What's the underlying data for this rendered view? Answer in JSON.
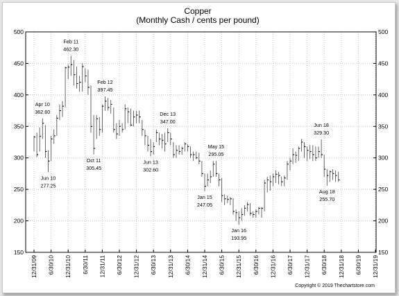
{
  "chart_data": {
    "type": "ohlc",
    "title": "Copper",
    "subtitle": "(Monthly Cash / cents per pound)",
    "xlabel": "",
    "ylabel": "",
    "ylim": [
      150,
      500
    ],
    "yticks": [
      150,
      200,
      250,
      300,
      350,
      400,
      450,
      500
    ],
    "grid": true,
    "x_tick_labels": [
      "12/31/09",
      "6/30/10",
      "12/31/10",
      "6/30/11",
      "12/31/11",
      "6/30/12",
      "12/31/12",
      "6/30/13",
      "12/31/13",
      "6/30/14",
      "12/31/14",
      "6/30/15",
      "12/31/15",
      "6/30/16",
      "12/31/16",
      "6/30/17",
      "12/31/17",
      "6/30/18",
      "12/31/18",
      "6/30/19",
      "12/31/19"
    ],
    "copyright": "Copyright © 2019 Thechartstore.com",
    "annotations": [
      {
        "date": "Apr 10",
        "value": "362.60",
        "month": 3,
        "y": 362.6,
        "pos": "above"
      },
      {
        "date": "Jun 10",
        "value": "277.25",
        "month": 5,
        "y": 277.25,
        "pos": "below"
      },
      {
        "date": "Feb 11",
        "value": "462.30",
        "month": 13,
        "y": 462.3,
        "pos": "above"
      },
      {
        "date": "Oct 11",
        "value": "305.45",
        "month": 21,
        "y": 305.45,
        "pos": "below"
      },
      {
        "date": "Feb 12",
        "value": "397.45",
        "month": 25,
        "y": 397.45,
        "pos": "above"
      },
      {
        "date": "Jun 13",
        "value": "302.60",
        "month": 41,
        "y": 302.6,
        "pos": "below"
      },
      {
        "date": "Dec 13",
        "value": "347.00",
        "month": 47,
        "y": 347.0,
        "pos": "above"
      },
      {
        "date": "Jan 15",
        "value": "247.05",
        "month": 60,
        "y": 247.05,
        "pos": "below"
      },
      {
        "date": "May 15",
        "value": "295.05",
        "month": 64,
        "y": 295.05,
        "pos": "above"
      },
      {
        "date": "Jan 16",
        "value": "193.95",
        "month": 72,
        "y": 193.95,
        "pos": "below"
      },
      {
        "date": "Jun 18",
        "value": "329.30",
        "month": 101,
        "y": 329.3,
        "pos": "above"
      },
      {
        "date": "Aug 18",
        "value": "255.70",
        "month": 103,
        "y": 255.7,
        "pos": "below"
      }
    ],
    "bars": [
      {
        "x": 0,
        "h": 335,
        "l": 310,
        "c": 333
      },
      {
        "x": 1,
        "h": 340,
        "l": 301,
        "c": 305
      },
      {
        "x": 2,
        "h": 348,
        "l": 310,
        "c": 334
      },
      {
        "x": 3,
        "h": 362.6,
        "l": 330,
        "c": 355
      },
      {
        "x": 4,
        "h": 352,
        "l": 300,
        "c": 310
      },
      {
        "x": 5,
        "h": 312,
        "l": 277.25,
        "c": 295
      },
      {
        "x": 6,
        "h": 335,
        "l": 295,
        "c": 330
      },
      {
        "x": 7,
        "h": 345,
        "l": 322,
        "c": 335
      },
      {
        "x": 8,
        "h": 368,
        "l": 335,
        "c": 363
      },
      {
        "x": 9,
        "h": 385,
        "l": 360,
        "c": 375
      },
      {
        "x": 10,
        "h": 390,
        "l": 365,
        "c": 382
      },
      {
        "x": 11,
        "h": 445,
        "l": 380,
        "c": 443
      },
      {
        "x": 12,
        "h": 448,
        "l": 425,
        "c": 444
      },
      {
        "x": 13,
        "h": 462.3,
        "l": 430,
        "c": 448
      },
      {
        "x": 14,
        "h": 455,
        "l": 415,
        "c": 432
      },
      {
        "x": 15,
        "h": 445,
        "l": 410,
        "c": 418
      },
      {
        "x": 16,
        "h": 430,
        "l": 405,
        "c": 420
      },
      {
        "x": 17,
        "h": 450,
        "l": 405,
        "c": 445
      },
      {
        "x": 18,
        "h": 442,
        "l": 420,
        "c": 430
      },
      {
        "x": 19,
        "h": 440,
        "l": 400,
        "c": 412
      },
      {
        "x": 20,
        "h": 415,
        "l": 340,
        "c": 350
      },
      {
        "x": 21,
        "h": 368,
        "l": 305.45,
        "c": 315
      },
      {
        "x": 22,
        "h": 368,
        "l": 330,
        "c": 362
      },
      {
        "x": 23,
        "h": 365,
        "l": 335,
        "c": 345
      },
      {
        "x": 24,
        "h": 385,
        "l": 340,
        "c": 382
      },
      {
        "x": 25,
        "h": 397.45,
        "l": 375,
        "c": 390
      },
      {
        "x": 26,
        "h": 395,
        "l": 375,
        "c": 380
      },
      {
        "x": 27,
        "h": 392,
        "l": 370,
        "c": 385
      },
      {
        "x": 28,
        "h": 380,
        "l": 340,
        "c": 345
      },
      {
        "x": 29,
        "h": 355,
        "l": 330,
        "c": 338
      },
      {
        "x": 30,
        "h": 360,
        "l": 335,
        "c": 350
      },
      {
        "x": 31,
        "h": 355,
        "l": 340,
        "c": 345
      },
      {
        "x": 32,
        "h": 385,
        "l": 345,
        "c": 378
      },
      {
        "x": 33,
        "h": 380,
        "l": 355,
        "c": 373
      },
      {
        "x": 34,
        "h": 378,
        "l": 350,
        "c": 352
      },
      {
        "x": 35,
        "h": 375,
        "l": 350,
        "c": 365
      },
      {
        "x": 36,
        "h": 375,
        "l": 355,
        "c": 368
      },
      {
        "x": 37,
        "h": 375,
        "l": 355,
        "c": 365
      },
      {
        "x": 38,
        "h": 360,
        "l": 335,
        "c": 345
      },
      {
        "x": 39,
        "h": 345,
        "l": 320,
        "c": 335
      },
      {
        "x": 40,
        "h": 335,
        "l": 310,
        "c": 320
      },
      {
        "x": 41,
        "h": 330,
        "l": 302.6,
        "c": 310
      },
      {
        "x": 42,
        "h": 325,
        "l": 305,
        "c": 318
      },
      {
        "x": 43,
        "h": 345,
        "l": 325,
        "c": 340
      },
      {
        "x": 44,
        "h": 340,
        "l": 320,
        "c": 330
      },
      {
        "x": 45,
        "h": 338,
        "l": 315,
        "c": 328
      },
      {
        "x": 46,
        "h": 340,
        "l": 310,
        "c": 322
      },
      {
        "x": 47,
        "h": 347.0,
        "l": 325,
        "c": 340
      },
      {
        "x": 48,
        "h": 340,
        "l": 320,
        "c": 330
      },
      {
        "x": 49,
        "h": 325,
        "l": 300,
        "c": 305
      },
      {
        "x": 50,
        "h": 320,
        "l": 300,
        "c": 312
      },
      {
        "x": 51,
        "h": 320,
        "l": 305,
        "c": 310
      },
      {
        "x": 52,
        "h": 318,
        "l": 305,
        "c": 315
      },
      {
        "x": 53,
        "h": 325,
        "l": 310,
        "c": 322
      },
      {
        "x": 54,
        "h": 322,
        "l": 310,
        "c": 318
      },
      {
        "x": 55,
        "h": 318,
        "l": 300,
        "c": 305
      },
      {
        "x": 56,
        "h": 310,
        "l": 295,
        "c": 305
      },
      {
        "x": 57,
        "h": 310,
        "l": 298,
        "c": 300
      },
      {
        "x": 58,
        "h": 308,
        "l": 290,
        "c": 295
      },
      {
        "x": 59,
        "h": 295,
        "l": 270,
        "c": 275
      },
      {
        "x": 60,
        "h": 275,
        "l": 247.05,
        "c": 255
      },
      {
        "x": 61,
        "h": 275,
        "l": 255,
        "c": 265
      },
      {
        "x": 62,
        "h": 280,
        "l": 260,
        "c": 270
      },
      {
        "x": 63,
        "h": 295,
        "l": 270,
        "c": 290
      },
      {
        "x": 64,
        "h": 295.05,
        "l": 270,
        "c": 275
      },
      {
        "x": 65,
        "h": 275,
        "l": 255,
        "c": 265
      },
      {
        "x": 66,
        "h": 268,
        "l": 230,
        "c": 240
      },
      {
        "x": 67,
        "h": 242,
        "l": 225,
        "c": 235
      },
      {
        "x": 68,
        "h": 240,
        "l": 228,
        "c": 234
      },
      {
        "x": 69,
        "h": 238,
        "l": 225,
        "c": 235
      },
      {
        "x": 70,
        "h": 236,
        "l": 210,
        "c": 215
      },
      {
        "x": 71,
        "h": 218,
        "l": 200,
        "c": 213
      },
      {
        "x": 72,
        "h": 215,
        "l": 193.95,
        "c": 205
      },
      {
        "x": 73,
        "h": 220,
        "l": 200,
        "c": 210
      },
      {
        "x": 74,
        "h": 225,
        "l": 208,
        "c": 220
      },
      {
        "x": 75,
        "h": 230,
        "l": 215,
        "c": 226
      },
      {
        "x": 76,
        "h": 228,
        "l": 208,
        "c": 212
      },
      {
        "x": 77,
        "h": 215,
        "l": 205,
        "c": 210
      },
      {
        "x": 78,
        "h": 218,
        "l": 205,
        "c": 215
      },
      {
        "x": 79,
        "h": 222,
        "l": 210,
        "c": 220
      },
      {
        "x": 80,
        "h": 222,
        "l": 205,
        "c": 220
      },
      {
        "x": 81,
        "h": 265,
        "l": 215,
        "c": 260
      },
      {
        "x": 82,
        "h": 270,
        "l": 245,
        "c": 265
      },
      {
        "x": 83,
        "h": 272,
        "l": 248,
        "c": 262
      },
      {
        "x": 84,
        "h": 275,
        "l": 255,
        "c": 270
      },
      {
        "x": 85,
        "h": 280,
        "l": 260,
        "c": 274
      },
      {
        "x": 86,
        "h": 278,
        "l": 258,
        "c": 272
      },
      {
        "x": 87,
        "h": 270,
        "l": 255,
        "c": 262
      },
      {
        "x": 88,
        "h": 272,
        "l": 255,
        "c": 268
      },
      {
        "x": 89,
        "h": 295,
        "l": 265,
        "c": 290
      },
      {
        "x": 90,
        "h": 300,
        "l": 280,
        "c": 295
      },
      {
        "x": 91,
        "h": 315,
        "l": 290,
        "c": 305
      },
      {
        "x": 92,
        "h": 310,
        "l": 292,
        "c": 304
      },
      {
        "x": 93,
        "h": 318,
        "l": 295,
        "c": 315
      },
      {
        "x": 94,
        "h": 330,
        "l": 310,
        "c": 325
      },
      {
        "x": 95,
        "h": 325,
        "l": 300,
        "c": 318
      },
      {
        "x": 96,
        "h": 318,
        "l": 295,
        "c": 312
      },
      {
        "x": 97,
        "h": 320,
        "l": 298,
        "c": 310
      },
      {
        "x": 98,
        "h": 320,
        "l": 295,
        "c": 305
      },
      {
        "x": 99,
        "h": 318,
        "l": 295,
        "c": 300
      },
      {
        "x": 100,
        "h": 318,
        "l": 300,
        "c": 310
      },
      {
        "x": 101,
        "h": 329.3,
        "l": 300,
        "c": 305
      },
      {
        "x": 102,
        "h": 305,
        "l": 270,
        "c": 282
      },
      {
        "x": 103,
        "h": 282,
        "l": 255.7,
        "c": 272
      },
      {
        "x": 104,
        "h": 280,
        "l": 262,
        "c": 278
      },
      {
        "x": 105,
        "h": 282,
        "l": 265,
        "c": 275
      },
      {
        "x": 106,
        "h": 280,
        "l": 262,
        "c": 272
      },
      {
        "x": 107,
        "h": 278,
        "l": 262,
        "c": 265
      }
    ]
  }
}
